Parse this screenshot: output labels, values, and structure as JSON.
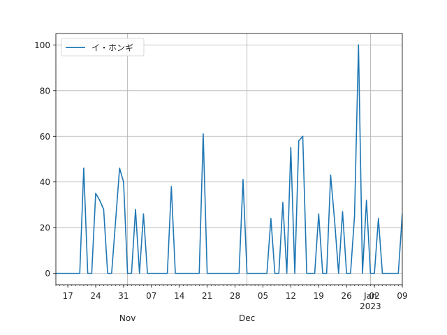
{
  "chart_data": {
    "type": "line",
    "title": "",
    "xlabel": "",
    "ylabel": "",
    "xlim": [
      "2022-10-14",
      "2023-01-09"
    ],
    "ylim": [
      -5,
      105
    ],
    "grid": true,
    "legend_position": "top-left",
    "series": [
      {
        "name": "イ・ホンギ",
        "color": "#1f77b4",
        "points": [
          [
            "2022-10-14",
            0
          ],
          [
            "2022-10-20",
            0
          ],
          [
            "2022-10-21",
            46
          ],
          [
            "2022-10-22",
            0
          ],
          [
            "2022-10-23",
            0
          ],
          [
            "2022-10-24",
            35
          ],
          [
            "2022-10-25",
            32
          ],
          [
            "2022-10-26",
            28
          ],
          [
            "2022-10-27",
            0
          ],
          [
            "2022-10-28",
            0
          ],
          [
            "2022-10-30",
            46
          ],
          [
            "2022-10-31",
            40
          ],
          [
            "2022-11-01",
            0
          ],
          [
            "2022-11-02",
            0
          ],
          [
            "2022-11-03",
            28
          ],
          [
            "2022-11-04",
            0
          ],
          [
            "2022-11-05",
            26
          ],
          [
            "2022-11-06",
            0
          ],
          [
            "2022-11-11",
            0
          ],
          [
            "2022-11-12",
            38
          ],
          [
            "2022-11-13",
            0
          ],
          [
            "2022-11-19",
            0
          ],
          [
            "2022-11-20",
            61
          ],
          [
            "2022-11-21",
            0
          ],
          [
            "2022-11-29",
            0
          ],
          [
            "2022-11-30",
            41
          ],
          [
            "2022-12-01",
            0
          ],
          [
            "2022-12-06",
            0
          ],
          [
            "2022-12-07",
            24
          ],
          [
            "2022-12-08",
            0
          ],
          [
            "2022-12-09",
            0
          ],
          [
            "2022-12-10",
            31
          ],
          [
            "2022-12-11",
            0
          ],
          [
            "2022-12-12",
            55
          ],
          [
            "2022-12-13",
            0
          ],
          [
            "2022-12-14",
            58
          ],
          [
            "2022-12-15",
            60
          ],
          [
            "2022-12-16",
            0
          ],
          [
            "2022-12-18",
            0
          ],
          [
            "2022-12-19",
            26
          ],
          [
            "2022-12-20",
            0
          ],
          [
            "2022-12-21",
            0
          ],
          [
            "2022-12-22",
            43
          ],
          [
            "2022-12-23",
            23
          ],
          [
            "2022-12-24",
            0
          ],
          [
            "2022-12-25",
            27
          ],
          [
            "2022-12-26",
            0
          ],
          [
            "2022-12-27",
            0
          ],
          [
            "2022-12-28",
            25
          ],
          [
            "2022-12-29",
            100
          ],
          [
            "2022-12-30",
            0
          ],
          [
            "2022-12-31",
            32
          ],
          [
            "2023-01-01",
            0
          ],
          [
            "2023-01-02",
            0
          ],
          [
            "2023-01-03",
            24
          ],
          [
            "2023-01-04",
            0
          ],
          [
            "2023-01-08",
            0
          ],
          [
            "2023-01-09",
            26
          ],
          [
            "2023-01-10",
            0
          ]
        ]
      }
    ],
    "y_ticks": [
      0,
      20,
      40,
      60,
      80,
      100
    ],
    "x_major_ticks": [
      {
        "date": "2022-10-17",
        "label": "17"
      },
      {
        "date": "2022-10-24",
        "label": "24"
      },
      {
        "date": "2022-10-31",
        "label": "31"
      },
      {
        "date": "2022-11-07",
        "label": "07"
      },
      {
        "date": "2022-11-14",
        "label": "14"
      },
      {
        "date": "2022-11-21",
        "label": "21"
      },
      {
        "date": "2022-11-28",
        "label": "28"
      },
      {
        "date": "2022-12-05",
        "label": "05"
      },
      {
        "date": "2022-12-12",
        "label": "12"
      },
      {
        "date": "2022-12-19",
        "label": "19"
      },
      {
        "date": "2022-12-26",
        "label": "26"
      },
      {
        "date": "2023-01-02",
        "label": "02"
      },
      {
        "date": "2023-01-09",
        "label": "09"
      }
    ],
    "x_month_labels": [
      {
        "date": "2022-11-01",
        "label": "Nov"
      },
      {
        "date": "2022-12-01",
        "label": "Dec"
      },
      {
        "date": "2023-01-01",
        "label": "Jan\n2023"
      }
    ]
  }
}
